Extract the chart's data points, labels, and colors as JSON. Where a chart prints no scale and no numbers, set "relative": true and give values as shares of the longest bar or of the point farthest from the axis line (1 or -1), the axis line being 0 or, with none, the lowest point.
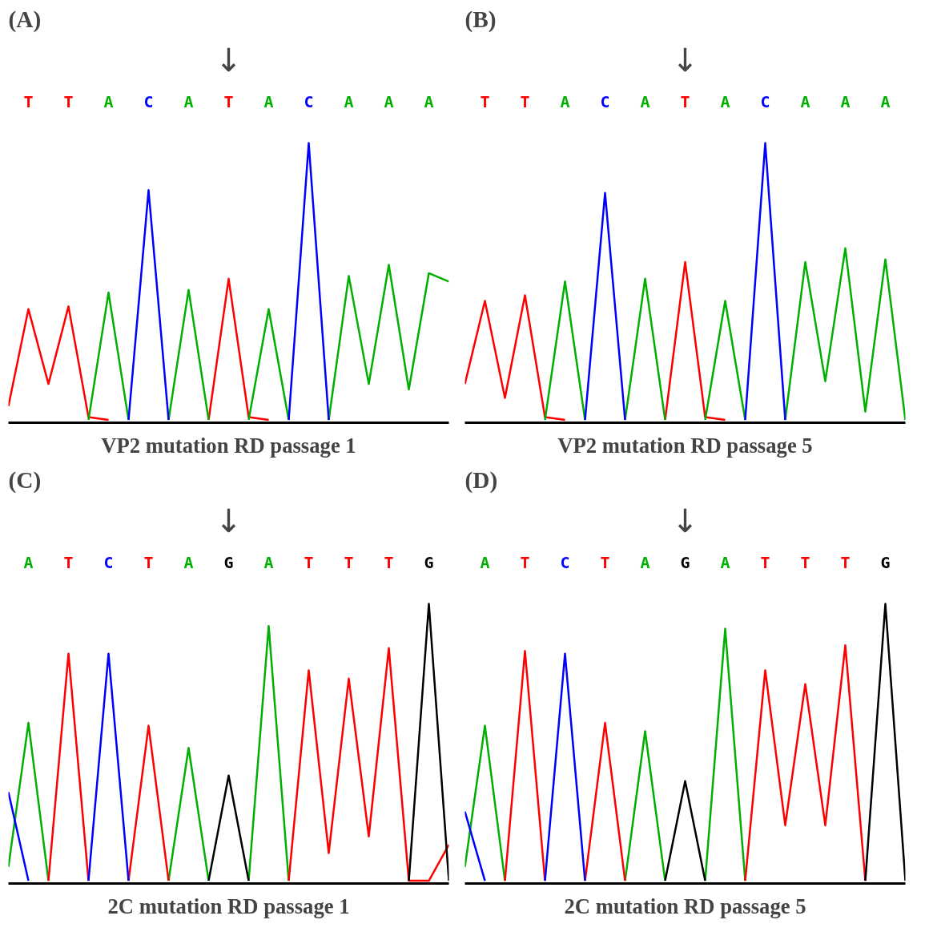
{
  "chart_data": [
    {
      "type": "line",
      "relative": true,
      "title": "VP2 mutation RD passage 1",
      "annotations": [
        "(A)",
        "↓"
      ],
      "categories": [
        null,
        "T",
        null,
        "T",
        null,
        "A",
        null,
        "C",
        null,
        "A",
        null,
        "T",
        null,
        "A",
        null,
        "C",
        null,
        "A",
        null,
        "A",
        null,
        "A",
        null
      ],
      "colors": [
        null,
        "#ff0000",
        null,
        "#ff0000",
        null,
        "#00b000",
        null,
        "#0000ff",
        null,
        "#00b000",
        null,
        "#ff0000",
        null,
        "#00b000",
        null,
        "#0000ff",
        null,
        "#00b000",
        null,
        "#00b000",
        null,
        "#00b000",
        null
      ],
      "grid": false,
      "line_style": "solid",
      "series": [
        {
          "color": "#ff0000",
          "values": [
            0.05,
            0.4,
            0.13,
            0.41,
            0.01,
            0,
            null,
            null,
            null,
            null,
            0,
            0.51,
            0.01,
            0,
            null,
            null,
            null,
            null,
            null,
            null,
            null,
            null,
            null
          ]
        },
        {
          "color": "#00b000",
          "values": [
            null,
            null,
            null,
            null,
            0,
            0.46,
            0,
            null,
            0,
            0.47,
            0,
            null,
            0,
            0.4,
            0,
            null,
            0,
            0.52,
            0.13,
            0.56,
            0.11,
            0.53,
            0.5
          ]
        },
        {
          "color": "#0000ff",
          "values": [
            null,
            null,
            null,
            null,
            null,
            null,
            0,
            0.83,
            0,
            null,
            null,
            null,
            null,
            null,
            0,
            1.0,
            0,
            null,
            null,
            null,
            null,
            null,
            null
          ]
        }
      ]
    },
    {
      "type": "line",
      "relative": true,
      "title": "VP2 mutation RD passage 5",
      "annotations": [
        "(B)",
        "↓"
      ],
      "categories": [
        null,
        "T",
        null,
        "T",
        null,
        "A",
        null,
        "C",
        null,
        "A",
        null,
        "T",
        null,
        "A",
        null,
        "C",
        null,
        "A",
        null,
        "A",
        null,
        "A",
        null
      ],
      "colors": [
        null,
        "#ff0000",
        null,
        "#ff0000",
        null,
        "#00b000",
        null,
        "#0000ff",
        null,
        "#00b000",
        null,
        "#ff0000",
        null,
        "#00b000",
        null,
        "#0000ff",
        null,
        "#00b000",
        null,
        "#00b000",
        null,
        "#00b000",
        null
      ],
      "grid": false,
      "line_style": "solid",
      "series": [
        {
          "color": "#ff0000",
          "values": [
            0.13,
            0.43,
            0.08,
            0.45,
            0.01,
            0,
            null,
            null,
            null,
            null,
            0,
            0.57,
            0.01,
            0,
            null,
            null,
            null,
            null,
            null,
            null,
            null,
            null,
            null
          ]
        },
        {
          "color": "#00b000",
          "values": [
            null,
            null,
            null,
            null,
            0,
            0.5,
            0,
            null,
            0,
            0.51,
            0,
            null,
            0,
            0.43,
            0,
            null,
            0,
            0.57,
            0.14,
            0.62,
            0.03,
            0.58,
            0
          ]
        },
        {
          "color": "#0000ff",
          "values": [
            null,
            null,
            null,
            null,
            null,
            null,
            0,
            0.82,
            0,
            null,
            null,
            null,
            null,
            null,
            0,
            1.0,
            0,
            null,
            null,
            null,
            null,
            null,
            null
          ]
        }
      ]
    },
    {
      "type": "line",
      "relative": true,
      "title": "2C mutation RD passage 1",
      "annotations": [
        "(C)",
        "↓"
      ],
      "categories": [
        null,
        "A",
        null,
        "T",
        null,
        "C",
        null,
        "T",
        null,
        "A",
        null,
        "G",
        null,
        "A",
        null,
        "T",
        null,
        "T",
        null,
        "T",
        null,
        "G",
        null
      ],
      "colors": [
        null,
        "#00b000",
        null,
        "#ff0000",
        null,
        "#0000ff",
        null,
        "#ff0000",
        null,
        "#00b000",
        null,
        "#000000",
        null,
        "#00b000",
        null,
        "#ff0000",
        null,
        "#ff0000",
        null,
        "#ff0000",
        null,
        "#000000",
        null
      ],
      "grid": false,
      "line_style": "solid",
      "series": [
        {
          "color": "#00b000",
          "values": [
            0.05,
            0.57,
            0,
            null,
            null,
            null,
            null,
            null,
            0,
            0.48,
            0,
            null,
            0,
            0.92,
            0,
            null,
            null,
            null,
            null,
            null,
            null,
            null,
            null
          ]
        },
        {
          "color": "#ff0000",
          "values": [
            null,
            null,
            0,
            0.82,
            0,
            null,
            0,
            0.56,
            0,
            null,
            null,
            null,
            null,
            null,
            0,
            0.76,
            0.1,
            0.73,
            0.16,
            0.84,
            0,
            0,
            0.13
          ]
        },
        {
          "color": "#0000ff",
          "values": [
            0.32,
            0,
            null,
            null,
            0,
            0.82,
            0,
            null,
            null,
            null,
            null,
            null,
            null,
            null,
            null,
            null,
            null,
            null,
            null,
            null,
            null,
            null,
            null
          ]
        },
        {
          "color": "#000000",
          "values": [
            null,
            null,
            null,
            null,
            null,
            null,
            null,
            null,
            null,
            null,
            0,
            0.38,
            0,
            null,
            null,
            null,
            null,
            null,
            null,
            null,
            0,
            1.0,
            0
          ]
        }
      ]
    },
    {
      "type": "line",
      "relative": true,
      "title": "2C mutation RD passage 5",
      "annotations": [
        "(D)",
        "↓"
      ],
      "categories": [
        null,
        "A",
        null,
        "T",
        null,
        "C",
        null,
        "T",
        null,
        "A",
        null,
        "G",
        null,
        "A",
        null,
        "T",
        null,
        "T",
        null,
        "T",
        null,
        "G",
        null
      ],
      "colors": [
        null,
        "#00b000",
        null,
        "#ff0000",
        null,
        "#0000ff",
        null,
        "#ff0000",
        null,
        "#00b000",
        null,
        "#000000",
        null,
        "#00b000",
        null,
        "#ff0000",
        null,
        "#ff0000",
        null,
        "#ff0000",
        null,
        "#000000",
        null
      ],
      "grid": false,
      "line_style": "solid",
      "series": [
        {
          "color": "#00b000",
          "values": [
            0.05,
            0.56,
            0,
            null,
            null,
            null,
            null,
            null,
            0,
            0.54,
            0,
            null,
            0,
            0.91,
            0,
            null,
            null,
            null,
            null,
            null,
            null,
            null,
            null
          ]
        },
        {
          "color": "#ff0000",
          "values": [
            null,
            null,
            0,
            0.83,
            0,
            null,
            0,
            0.57,
            0,
            null,
            null,
            null,
            null,
            null,
            0,
            0.76,
            0.2,
            0.71,
            0.2,
            0.85,
            0,
            null,
            null
          ]
        },
        {
          "color": "#0000ff",
          "values": [
            0.25,
            0,
            null,
            null,
            0,
            0.82,
            0,
            null,
            null,
            null,
            null,
            null,
            null,
            null,
            null,
            null,
            null,
            null,
            null,
            null,
            null,
            null,
            null
          ]
        },
        {
          "color": "#000000",
          "values": [
            null,
            null,
            null,
            null,
            null,
            null,
            null,
            null,
            null,
            null,
            0,
            0.36,
            0,
            null,
            null,
            null,
            null,
            null,
            null,
            null,
            0,
            1.0,
            0
          ]
        }
      ]
    }
  ]
}
